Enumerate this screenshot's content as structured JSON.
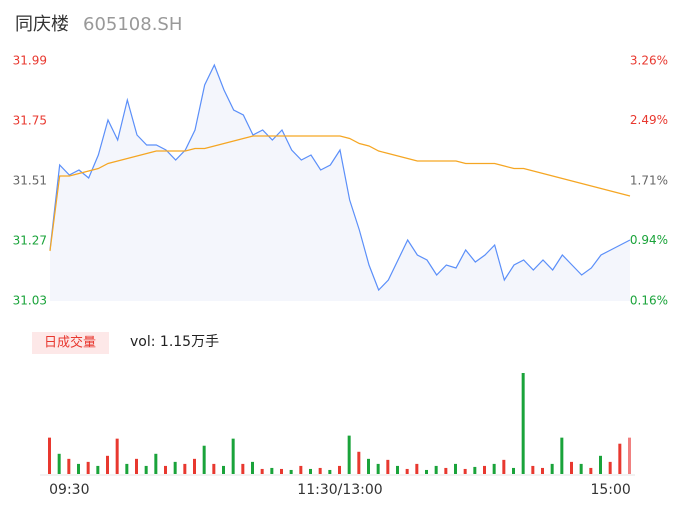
{
  "chart_data": [
    {
      "type": "line",
      "title": "同庆楼",
      "subtitle": "605108.SH",
      "x": [
        0,
        4,
        8,
        12,
        16,
        20,
        24,
        28,
        32,
        36,
        40,
        44,
        48,
        52,
        56,
        60,
        64,
        68,
        72,
        76,
        80,
        84,
        88,
        92,
        96,
        100,
        104,
        108,
        112,
        116,
        120,
        124,
        128,
        132,
        136,
        140,
        144,
        148,
        152,
        156,
        160,
        164,
        168,
        172,
        176,
        180,
        184,
        188,
        192,
        196,
        200,
        204,
        208,
        212,
        216,
        220,
        224,
        228,
        232,
        236,
        240
      ],
      "xlim": [
        0,
        240
      ],
      "ylim": [
        31.03,
        31.99
      ],
      "yticks": [
        31.03,
        31.27,
        31.51,
        31.75,
        31.99
      ],
      "ytick_colors": [
        "#1aa33a",
        "#1aa33a",
        "#666666",
        "#e8382f",
        "#e8382f"
      ],
      "y2lim": [
        0.16,
        3.26
      ],
      "y2ticks": [
        {
          "value": 0.16,
          "label": "0.16%"
        },
        {
          "value": 0.94,
          "label": "0.94%"
        },
        {
          "value": 1.71,
          "label": "1.71%"
        },
        {
          "value": 2.49,
          "label": "2.49%"
        },
        {
          "value": 3.26,
          "label": "3.26%"
        }
      ],
      "y2tick_colors": [
        "#1aa33a",
        "#1aa33a",
        "#666666",
        "#e8382f",
        "#e8382f"
      ],
      "grid": false,
      "series": [
        {
          "color": "#5b8ff9",
          "area": true,
          "values": [
            31.234,
            31.574,
            31.534,
            31.554,
            31.522,
            31.614,
            31.754,
            31.674,
            31.834,
            31.694,
            31.654,
            31.654,
            31.634,
            31.594,
            31.634,
            31.714,
            31.894,
            31.974,
            31.874,
            31.794,
            31.774,
            31.694,
            31.714,
            31.674,
            31.714,
            31.634,
            31.594,
            31.614,
            31.554,
            31.574,
            31.634,
            31.434,
            31.314,
            31.174,
            31.074,
            31.114,
            31.194,
            31.274,
            31.214,
            31.194,
            31.134,
            31.174,
            31.162,
            31.234,
            31.186,
            31.214,
            31.254,
            31.114,
            31.174,
            31.194,
            31.154,
            31.194,
            31.154,
            31.214,
            31.174,
            31.134,
            31.162,
            31.214,
            31.234,
            31.254,
            31.274
          ]
        },
        {
          "color": "#f5a623",
          "area": false,
          "values": [
            31.23,
            31.53,
            31.53,
            31.54,
            31.55,
            31.56,
            31.58,
            31.59,
            31.6,
            31.61,
            31.62,
            31.63,
            31.63,
            31.63,
            31.63,
            31.64,
            31.64,
            31.65,
            31.66,
            31.67,
            31.68,
            31.69,
            31.69,
            31.69,
            31.69,
            31.69,
            31.69,
            31.69,
            31.69,
            31.69,
            31.69,
            31.68,
            31.66,
            31.65,
            31.63,
            31.62,
            31.61,
            31.6,
            31.59,
            31.59,
            31.59,
            31.59,
            31.59,
            31.58,
            31.58,
            31.58,
            31.58,
            31.57,
            31.56,
            31.56,
            31.55,
            31.54,
            31.53,
            31.52,
            31.51,
            31.5,
            31.49,
            31.48,
            31.47,
            31.46,
            31.45
          ]
        }
      ]
    },
    {
      "type": "bar",
      "legend_label": "日成交量",
      "annotation": "vol: 1.15万手",
      "x": [
        0,
        4,
        8,
        12,
        16,
        20,
        24,
        28,
        32,
        36,
        40,
        44,
        48,
        52,
        56,
        60,
        64,
        68,
        72,
        76,
        80,
        84,
        88,
        92,
        96,
        100,
        104,
        108,
        112,
        116,
        120,
        124,
        128,
        132,
        136,
        140,
        144,
        148,
        152,
        156,
        160,
        164,
        168,
        172,
        176,
        180,
        184,
        188,
        192,
        196,
        200,
        204,
        208,
        212,
        216,
        220,
        224,
        228,
        232,
        236,
        240
      ],
      "xlim": [
        0,
        240
      ],
      "xticks": [
        {
          "value": 8,
          "label": "09:30"
        },
        {
          "value": 120,
          "label": "11:30/13:00"
        },
        {
          "value": 232,
          "label": "15:00"
        }
      ],
      "values": [
        36,
        20,
        15,
        10,
        12,
        8,
        18,
        35,
        10,
        15,
        8,
        20,
        8,
        12,
        10,
        15,
        28,
        10,
        8,
        35,
        10,
        12,
        5,
        6,
        5,
        4,
        8,
        5,
        6,
        4,
        8,
        38,
        22,
        15,
        10,
        14,
        8,
        5,
        10,
        4,
        8,
        6,
        10,
        5,
        7,
        8,
        10,
        14,
        6,
        100,
        8,
        6,
        10,
        36,
        12,
        10,
        6,
        18,
        12,
        30,
        36
      ],
      "colors": [
        "#e8382f",
        "#1aa33a",
        "#e8382f",
        "#1aa33a",
        "#e8382f",
        "#1aa33a",
        "#e8382f",
        "#e8382f",
        "#1aa33a",
        "#e8382f",
        "#1aa33a",
        "#1aa33a",
        "#e8382f",
        "#1aa33a",
        "#e8382f",
        "#e8382f",
        "#1aa33a",
        "#e8382f",
        "#1aa33a",
        "#1aa33a",
        "#e8382f",
        "#1aa33a",
        "#e8382f",
        "#1aa33a",
        "#e8382f",
        "#1aa33a",
        "#e8382f",
        "#1aa33a",
        "#e8382f",
        "#1aa33a",
        "#e8382f",
        "#1aa33a",
        "#e8382f",
        "#1aa33a",
        "#1aa33a",
        "#e8382f",
        "#1aa33a",
        "#e8382f",
        "#e8382f",
        "#1aa33a",
        "#1aa33a",
        "#e8382f",
        "#1aa33a",
        "#e8382f",
        "#1aa33a",
        "#e8382f",
        "#1aa33a",
        "#e8382f",
        "#1aa33a",
        "#1aa33a",
        "#e8382f",
        "#e8382f",
        "#1aa33a",
        "#1aa33a",
        "#e8382f",
        "#1aa33a",
        "#e8382f",
        "#1aa33a",
        "#e8382f",
        "#e8382f",
        "#f08080"
      ]
    }
  ]
}
